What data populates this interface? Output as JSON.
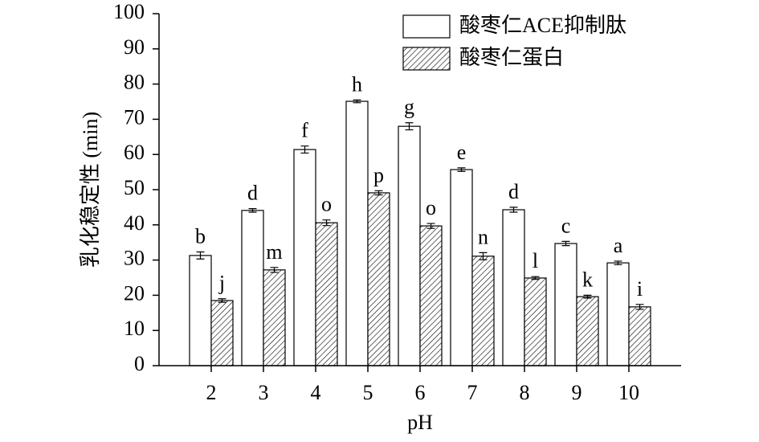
{
  "chart_data": {
    "type": "bar",
    "x_label": "pH",
    "y_label": "乳化稳定性 (min)",
    "x": [
      2,
      3,
      4,
      5,
      6,
      7,
      8,
      9,
      10
    ],
    "xlim": [
      1,
      11
    ],
    "xticks": [
      2,
      3,
      4,
      5,
      6,
      7,
      8,
      9,
      10
    ],
    "ylim": [
      0,
      100
    ],
    "yticks": [
      0,
      10,
      20,
      30,
      40,
      50,
      60,
      70,
      80,
      90,
      100
    ],
    "legend": "upper right",
    "series": [
      {
        "name": "酸枣仁ACE抑制肽",
        "color": "#ffffff",
        "pattern": "solid",
        "values": [
          31.3,
          44.1,
          61.4,
          75.1,
          68.0,
          55.7,
          44.3,
          34.7,
          29.2
        ],
        "errors": [
          1.0,
          0.5,
          1.0,
          0.4,
          1.0,
          0.5,
          0.7,
          0.6,
          0.5
        ],
        "labels": [
          "b",
          "d",
          "f",
          "h",
          "g",
          "e",
          "d",
          "c",
          "a"
        ]
      },
      {
        "name": "酸枣仁蛋白",
        "color": "#ffffff",
        "pattern": "hatch",
        "values": [
          18.5,
          27.2,
          40.6,
          49.1,
          39.7,
          31.1,
          24.9,
          19.6,
          16.7
        ],
        "errors": [
          0.5,
          0.7,
          0.8,
          0.6,
          0.7,
          1.0,
          0.4,
          0.4,
          0.7
        ],
        "labels": [
          "j",
          "m",
          "o",
          "p",
          "o",
          "n",
          "l",
          "k",
          "i"
        ]
      }
    ]
  }
}
